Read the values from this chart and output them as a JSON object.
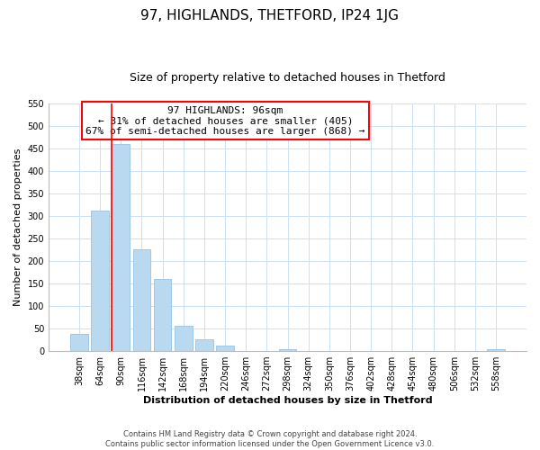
{
  "title": "97, HIGHLANDS, THETFORD, IP24 1JG",
  "subtitle": "Size of property relative to detached houses in Thetford",
  "xlabel": "Distribution of detached houses by size in Thetford",
  "ylabel": "Number of detached properties",
  "footer_line1": "Contains HM Land Registry data © Crown copyright and database right 2024.",
  "footer_line2": "Contains public sector information licensed under the Open Government Licence v3.0.",
  "bar_labels": [
    "38sqm",
    "64sqm",
    "90sqm",
    "116sqm",
    "142sqm",
    "168sqm",
    "194sqm",
    "220sqm",
    "246sqm",
    "272sqm",
    "298sqm",
    "324sqm",
    "350sqm",
    "376sqm",
    "402sqm",
    "428sqm",
    "454sqm",
    "480sqm",
    "506sqm",
    "532sqm",
    "558sqm"
  ],
  "bar_values": [
    38,
    312,
    460,
    227,
    160,
    56,
    26,
    13,
    0,
    0,
    5,
    0,
    0,
    0,
    0,
    0,
    0,
    0,
    0,
    0,
    4
  ],
  "bar_color": "#b8d9f0",
  "bar_edge_color": "#9fc8e8",
  "red_line_bar_index": 2,
  "annotation_text_line1": "97 HIGHLANDS: 96sqm",
  "annotation_text_line2": "← 31% of detached houses are smaller (405)",
  "annotation_text_line3": "67% of semi-detached houses are larger (868) →",
  "ylim": [
    0,
    550
  ],
  "yticks": [
    0,
    50,
    100,
    150,
    200,
    250,
    300,
    350,
    400,
    450,
    500,
    550
  ],
  "background_color": "#ffffff",
  "grid_color": "#cce0f5",
  "title_fontsize": 11,
  "subtitle_fontsize": 9,
  "axis_label_fontsize": 8,
  "tick_fontsize": 7,
  "annotation_fontsize": 8,
  "footer_fontsize": 6
}
